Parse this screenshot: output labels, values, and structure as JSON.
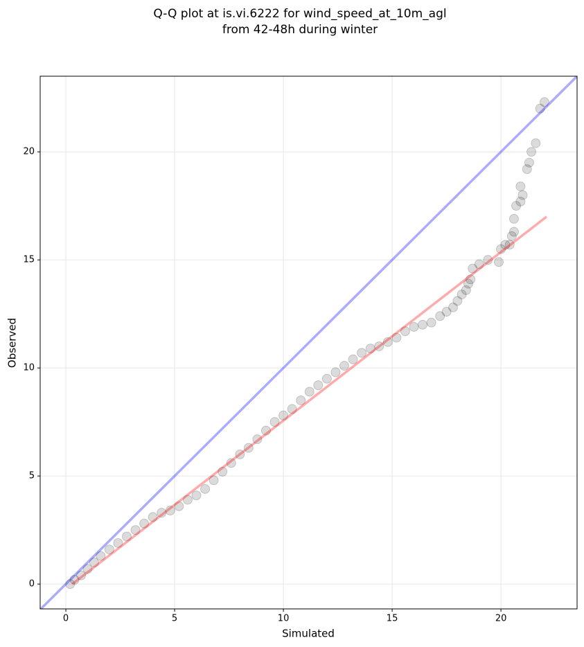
{
  "chart_data": {
    "type": "scatter",
    "title": [
      "Q-Q plot at is.vi.6222 for wind_speed_at_10m_agl",
      "from 42-48h during winter"
    ],
    "x_label": "Simulated",
    "y_label": "Observed",
    "xlim": [
      -1.18,
      23.5
    ],
    "ylim": [
      -1.15,
      23.5
    ],
    "xticks": [
      0,
      5,
      10,
      15,
      20
    ],
    "yticks": [
      0,
      5,
      10,
      15,
      20
    ],
    "grid": true,
    "color": "#000000",
    "x": [
      0.2,
      0.4,
      0.7,
      1.0,
      1.3,
      1.6,
      2.0,
      2.4,
      2.8,
      3.2,
      3.6,
      4.0,
      4.4,
      4.8,
      5.2,
      5.6,
      6.0,
      6.4,
      6.8,
      7.2,
      7.6,
      8.0,
      8.4,
      8.8,
      9.2,
      9.6,
      10.0,
      10.4,
      10.8,
      11.2,
      11.6,
      12.0,
      12.4,
      12.8,
      13.2,
      13.6,
      14.0,
      14.4,
      14.8,
      15.2,
      15.6,
      16.0,
      16.4,
      16.8,
      17.2,
      17.5,
      17.8,
      18.0,
      18.2,
      18.4,
      18.5,
      18.6,
      18.7,
      19.0,
      19.4,
      19.9,
      20.0,
      20.2,
      20.4,
      20.5,
      20.6,
      20.6,
      20.7,
      20.9,
      21.0,
      20.9,
      21.2,
      21.3,
      21.4,
      21.6,
      21.8,
      22.0
    ],
    "y": [
      0.0,
      0.2,
      0.4,
      0.7,
      1.0,
      1.3,
      1.6,
      1.9,
      2.2,
      2.5,
      2.8,
      3.1,
      3.3,
      3.4,
      3.6,
      3.9,
      4.1,
      4.4,
      4.8,
      5.2,
      5.6,
      6.0,
      6.3,
      6.7,
      7.1,
      7.5,
      7.8,
      8.1,
      8.5,
      8.9,
      9.2,
      9.5,
      9.8,
      10.1,
      10.4,
      10.7,
      10.9,
      11.0,
      11.2,
      11.4,
      11.7,
      11.9,
      12.0,
      12.1,
      12.4,
      12.6,
      12.8,
      13.1,
      13.4,
      13.6,
      13.9,
      14.1,
      14.6,
      14.8,
      15.0,
      14.9,
      15.5,
      15.7,
      15.7,
      16.1,
      16.3,
      16.9,
      17.5,
      17.7,
      18.0,
      18.4,
      19.2,
      19.5,
      20.0,
      20.4,
      22.0,
      22.3
    ],
    "lines": [
      {
        "color": "#0000ff",
        "x": [
          -1.18,
          23.5
        ],
        "y": [
          -1.18,
          23.5
        ]
      },
      {
        "color": "#ff0000",
        "x": [
          0.3,
          22.1
        ],
        "y": [
          0.0,
          17.0
        ]
      }
    ]
  }
}
